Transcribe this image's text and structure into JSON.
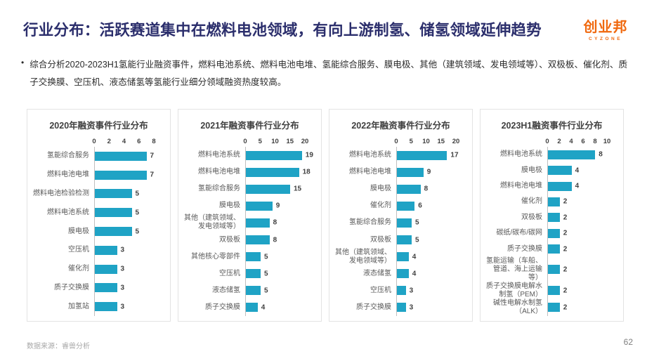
{
  "header": {
    "title": "行业分布：活跃赛道集中在燃料电池领域，有向上游制氢、储氢领域延伸趋势",
    "logo_text": "创业邦",
    "logo_subtext": "CYZONE"
  },
  "summary": {
    "bullet_marker": "•",
    "text": "综合分析2020-2023H1氢能行业融资事件，燃料电池系统、燃料电池电堆、氢能综合服务、膜电极、其他（建筑领域、发电领域等）、双极板、催化剂、质子交换膜、空压机、液态储氢等氢能行业细分领域融资热度较高。"
  },
  "footer": {
    "source": "数据来源：睿兽分析",
    "page": "62"
  },
  "colors": {
    "bar": "#1FA3C5",
    "title": "#2B2E6C",
    "logo": "#F0690F"
  },
  "chart_data": [
    {
      "type": "bar",
      "orientation": "horizontal",
      "title": "2020年融资事件行业分布",
      "categories": [
        "氢能综合服务",
        "燃料电池电堆",
        "燃料电池检验检测",
        "燃料电池系统",
        "膜电极",
        "空压机",
        "催化剂",
        "质子交换膜",
        "加氢站"
      ],
      "values": [
        7,
        7,
        5,
        5,
        5,
        3,
        3,
        3,
        3
      ],
      "xlim": [
        0,
        8
      ],
      "xticks": [
        0,
        2,
        4,
        6,
        8
      ],
      "grid": false,
      "value_labels": true
    },
    {
      "type": "bar",
      "orientation": "horizontal",
      "title": "2021年融资事件行业分布",
      "categories": [
        "燃料电池系统",
        "燃料电池电堆",
        "氢能综合服务",
        "膜电极",
        "其他（建筑领域、发电领域等）",
        "双极板",
        "其他核心零部件",
        "空压机",
        "液态储氢",
        "质子交换膜"
      ],
      "values": [
        19,
        18,
        15,
        9,
        8,
        8,
        5,
        5,
        5,
        4
      ],
      "xlim": [
        0,
        20
      ],
      "xticks": [
        0,
        5,
        10,
        15,
        20
      ],
      "grid": false,
      "value_labels": true
    },
    {
      "type": "bar",
      "orientation": "horizontal",
      "title": "2022年融资事件行业分布",
      "categories": [
        "燃料电池系统",
        "燃料电池电堆",
        "膜电极",
        "催化剂",
        "氢能综合服务",
        "双极板",
        "其他（建筑领域、发电领域等）",
        "液态储氢",
        "空压机",
        "质子交换膜"
      ],
      "values": [
        17,
        9,
        8,
        6,
        5,
        5,
        4,
        4,
        3,
        3
      ],
      "xlim": [
        0,
        20
      ],
      "xticks": [
        0,
        5,
        10,
        15,
        20
      ],
      "grid": false,
      "value_labels": true
    },
    {
      "type": "bar",
      "orientation": "horizontal",
      "title": "2023H1融资事件行业分布",
      "categories": [
        "燃料电池系统",
        "膜电极",
        "燃料电池电堆",
        "催化剂",
        "双极板",
        "碳纸/碳布/碳网",
        "质子交换膜",
        "氢能运输（车船、管道、海上运输等）",
        "质子交换膜电解水制氢（PEM）",
        "碱性电解水制氢（ALK）"
      ],
      "values": [
        8,
        4,
        4,
        2,
        2,
        2,
        2,
        2,
        2,
        2
      ],
      "xlim": [
        0,
        10
      ],
      "xticks": [
        0,
        2,
        4,
        6,
        8,
        10
      ],
      "grid": false,
      "value_labels": true
    }
  ]
}
